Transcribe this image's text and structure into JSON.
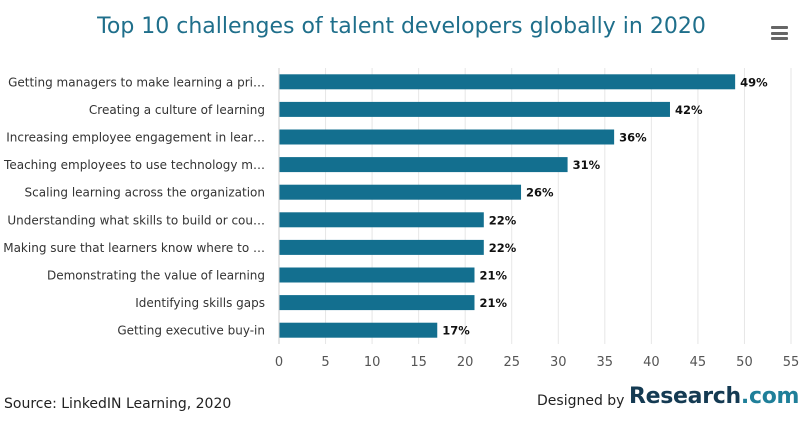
{
  "chart_data": {
    "type": "bar",
    "orientation": "horizontal",
    "title": "Top 10 challenges of talent developers globally in 2020",
    "categories": [
      "Getting managers to make learning a pri…",
      "Creating a culture of learning",
      "Increasing employee engagement in lear…",
      "Teaching employees to use technology m…",
      "Scaling learning across the organization",
      "Understanding what skills to build or cou…",
      "Making sure that learners know where to …",
      "Demonstrating the value of learning",
      "Identifying skills gaps",
      "Getting executive buy-in"
    ],
    "values": [
      49,
      42,
      36,
      31,
      26,
      22,
      22,
      21,
      21,
      17
    ],
    "data_labels": [
      "49%",
      "42%",
      "36%",
      "31%",
      "26%",
      "22%",
      "22%",
      "21%",
      "21%",
      "17%"
    ],
    "xlim": [
      0,
      55
    ],
    "x_ticks": [
      "0",
      "5",
      "10",
      "15",
      "20",
      "25",
      "30",
      "35",
      "40",
      "45",
      "50",
      "55"
    ],
    "xlabel": "",
    "ylabel": "",
    "grid": "vertical",
    "bar_color": "#136f8f"
  },
  "footer": {
    "source": "Source: LinkedIN Learning, 2020",
    "designed_by": "Designed by",
    "brand_name": "Research",
    "brand_suffix": ".com"
  },
  "icons": {
    "menu": "hamburger-menu-icon"
  }
}
